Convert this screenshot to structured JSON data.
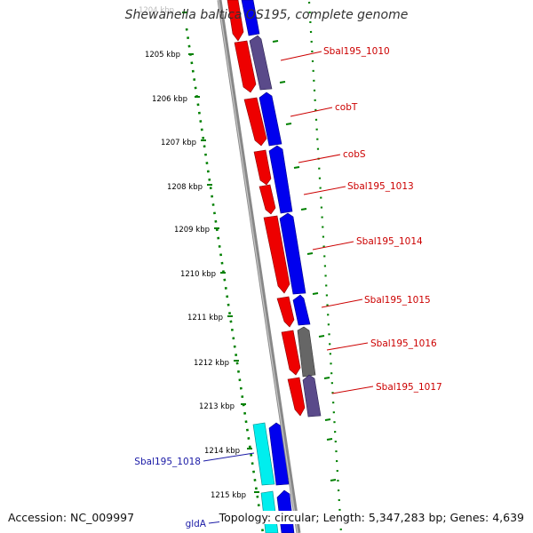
{
  "title": "Shewanella baltica OS195, complete genome",
  "accession_text": "Accession: NC_009997",
  "summary_text": "Topology: circular; Length: 5,347,283 bp; Genes: 4,639",
  "colors": {
    "forward_cds": "#ee0000",
    "reverse_cds": "#0000ee",
    "rna_gene": "#00eeee",
    "hypothetical": "#5a4a8a",
    "pseudo": "#666666",
    "backbone": "#888888",
    "tick_green": "#008000",
    "label_red": "#cc0000",
    "label_blue": "#1a1aa6"
  },
  "scale": {
    "unit": "kbp",
    "ticks": [
      {
        "label": "1204 kbp",
        "pos": 1204
      },
      {
        "label": "1205 kbp",
        "pos": 1205
      },
      {
        "label": "1206 kbp",
        "pos": 1206
      },
      {
        "label": "1207 kbp",
        "pos": 1207
      },
      {
        "label": "1208 kbp",
        "pos": 1208
      },
      {
        "label": "1209 kbp",
        "pos": 1209
      },
      {
        "label": "1210 kbp",
        "pos": 1210
      },
      {
        "label": "1211 kbp",
        "pos": 1211
      },
      {
        "label": "1212 kbp",
        "pos": 1212
      },
      {
        "label": "1213 kbp",
        "pos": 1213
      },
      {
        "label": "1214 kbp",
        "pos": 1214
      },
      {
        "label": "1215 kbp",
        "pos": 1215
      }
    ]
  },
  "features": [
    {
      "label": "Sbal195_1010",
      "color": "red",
      "pos": 1205.0
    },
    {
      "label": "cobT",
      "color": "red",
      "pos": 1206.2
    },
    {
      "label": "cobS",
      "color": "red",
      "pos": 1207.2
    },
    {
      "label": "Sbal195_1013",
      "color": "red",
      "pos": 1208.0
    },
    {
      "label": "Sbal195_1014",
      "color": "red",
      "pos": 1209.2
    },
    {
      "label": "Sbal195_1015",
      "color": "red",
      "pos": 1210.8
    },
    {
      "label": "Sbal195_1016",
      "color": "red",
      "pos": 1211.8
    },
    {
      "label": "Sbal195_1017",
      "color": "red",
      "pos": 1212.6
    },
    {
      "label": "Sbal195_1018",
      "color": "blue",
      "pos": 1214.0
    },
    {
      "label": "gldA",
      "color": "blue",
      "pos": 1215.2
    }
  ]
}
